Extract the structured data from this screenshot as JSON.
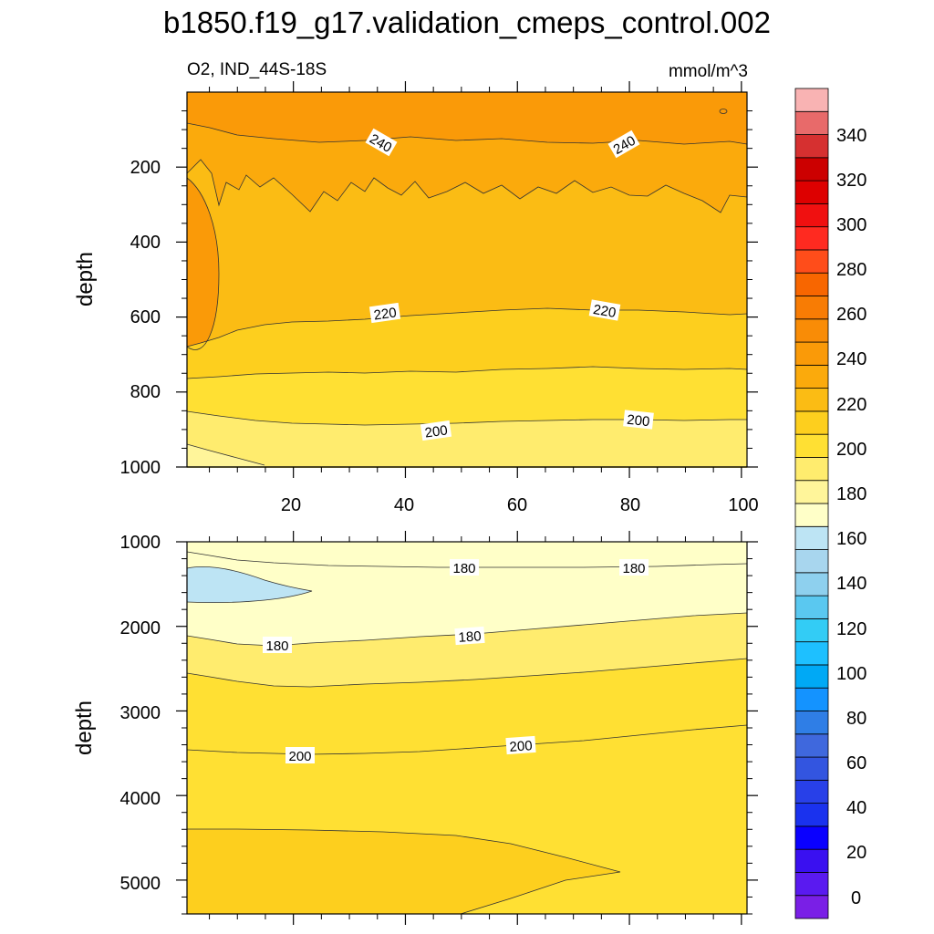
{
  "title": "b1850.f19_g17.validation_cmeps_control.002",
  "chart_data": {
    "type": "contour",
    "variable_label": "O2, IND_44S-18S",
    "units_label": "mmol/m^3",
    "x_range": [
      1,
      101
    ],
    "x_ticks": [
      "20",
      "40",
      "60",
      "80",
      "100"
    ],
    "colorbar": {
      "levels": [
        0,
        10,
        20,
        30,
        40,
        50,
        60,
        70,
        80,
        90,
        100,
        110,
        120,
        130,
        140,
        150,
        160,
        170,
        180,
        190,
        200,
        210,
        220,
        230,
        240,
        250,
        260,
        270,
        280,
        290,
        300,
        310,
        320,
        330,
        340,
        350
      ],
      "labels": [
        "0",
        "20",
        "40",
        "60",
        "80",
        "100",
        "120",
        "140",
        "160",
        "180",
        "200",
        "220",
        "240",
        "260",
        "280",
        "300",
        "320",
        "340"
      ],
      "colors": [
        "#7a1fe6",
        "#5a1af0",
        "#3a10f0",
        "#0a00ff",
        "#1a32ee",
        "#2840e8",
        "#3355e0",
        "#3f68dd",
        "#2f7ee6",
        "#1493ff",
        "#00a9f5",
        "#1ec0ff",
        "#33ccf5",
        "#5ac8f0",
        "#8ed0ee",
        "#a8d6ee",
        "#bde4f4",
        "#ffffc8",
        "#fff59a",
        "#ffec6e",
        "#ffe033",
        "#fdcf1e",
        "#fbbc14",
        "#fbaa0c",
        "#fa9a08",
        "#f98c06",
        "#f87c04",
        "#f86600",
        "#ff4d1a",
        "#ff2a20",
        "#f01010",
        "#dd0000",
        "#cc0000",
        "#d63030",
        "#e86a6a",
        "#f9b3b3"
      ]
    },
    "panels": [
      {
        "name": "upper",
        "y_range": [
          1000,
          0
        ],
        "y_ticks": [
          "200",
          "400",
          "600",
          "800",
          "1000"
        ],
        "ylabel": "depth",
        "contour_labels": [
          "240",
          "240",
          "220",
          "220",
          "200",
          "200"
        ]
      },
      {
        "name": "lower",
        "y_range": [
          5400,
          1000
        ],
        "y_ticks": [
          "1000",
          "2000",
          "3000",
          "4000",
          "5000"
        ],
        "ylabel": "depth",
        "contour_labels": [
          "180",
          "180",
          "180",
          "180",
          "200",
          "200"
        ]
      }
    ]
  }
}
